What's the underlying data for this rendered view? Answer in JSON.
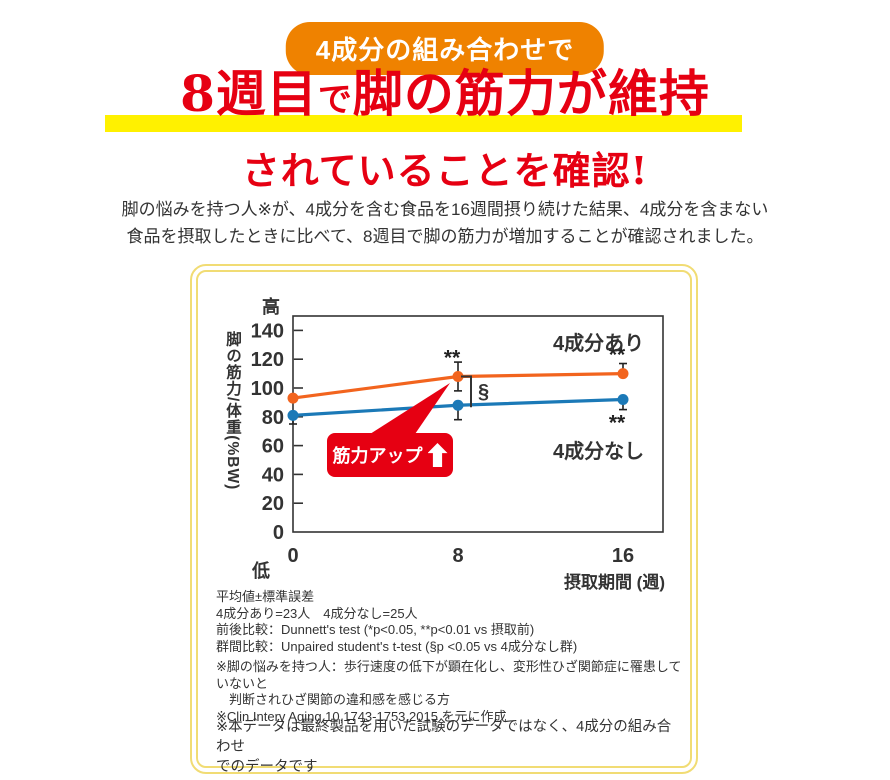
{
  "badge": {
    "label": "4成分の組み合わせで"
  },
  "headline": {
    "pre": "8週目",
    "small": "で",
    "post": "脚の筋力が維持",
    "line2": "されていることを確認!"
  },
  "lead": {
    "line1": "脚の悩みを持つ人※が、4成分を含む食品を16週間摂り続けた結果、4成分を含まない",
    "line2": "食品を摂取したときに比べて、8週目で脚の筋力が増加することが確認されました。"
  },
  "chart_data": {
    "type": "line",
    "x": [
      0,
      8,
      16
    ],
    "xticks": [
      "0",
      "8",
      "16"
    ],
    "yticks": [
      0,
      20,
      40,
      60,
      80,
      100,
      120,
      140
    ],
    "ylim": [
      0,
      150
    ],
    "xlabel": "摂取期間 (週)",
    "ylabel": "脚の筋力/体重(%BW)",
    "y_high_label": "高",
    "y_low_label": "低",
    "grid": false,
    "legend_position": "inside-right",
    "series": [
      {
        "name": "4成分あり",
        "color": "#f2641e",
        "values": [
          93,
          108,
          110
        ],
        "errors": [
          0,
          10,
          7
        ],
        "error_dirs": [
          "none",
          "both",
          "up"
        ]
      },
      {
        "name": "4成分なし",
        "color": "#1b79b7",
        "values": [
          81,
          88,
          92
        ],
        "errors": [
          6,
          10,
          7
        ],
        "error_dirs": [
          "down",
          "down",
          "down"
        ]
      }
    ],
    "significance": [
      {
        "series": 0,
        "x": 8,
        "label": "**",
        "pos": "above"
      },
      {
        "series": 0,
        "x": 16,
        "label": "**",
        "pos": "above"
      },
      {
        "series": 1,
        "x": 16,
        "label": "**",
        "pos": "below"
      }
    ],
    "bracket": {
      "x": 8,
      "label": "§"
    },
    "annotation": {
      "label": "筋力アップ",
      "icon": "up-arrow",
      "color": "#e60012"
    }
  },
  "footnotes": {
    "stats": [
      "平均値±標準誤差",
      "4成分あり=23人　4成分なし=25人",
      "前後比較：Dunnett's test (*p<0.05, **p<0.01 vs 摂取前)",
      "群間比較：Unpaired student's t-test (§p <0.05 vs 4成分なし群)"
    ],
    "definitions": [
      "※脚の悩みを持つ人：歩行速度の低下が顕在化し、変形性ひざ関節症に罹患していないと",
      "　判断されひざ関節の違和感を感じる方",
      "※Clin Interv Aging.10,1743-1753,2015 を元に作成"
    ],
    "disclaimer": [
      "※本データは最終製品を用いた試験のデータではなく、4成分の組み合わせ",
      "でのデータです"
    ]
  },
  "colors": {
    "headline_red": "#e60012",
    "badge_orange": "#ef8200",
    "highlight_yellow": "#fff100",
    "panel_border_yellow": "#f1dc74",
    "series_with": "#f2641e",
    "series_without": "#1b79b7",
    "callout_red": "#e60012"
  }
}
